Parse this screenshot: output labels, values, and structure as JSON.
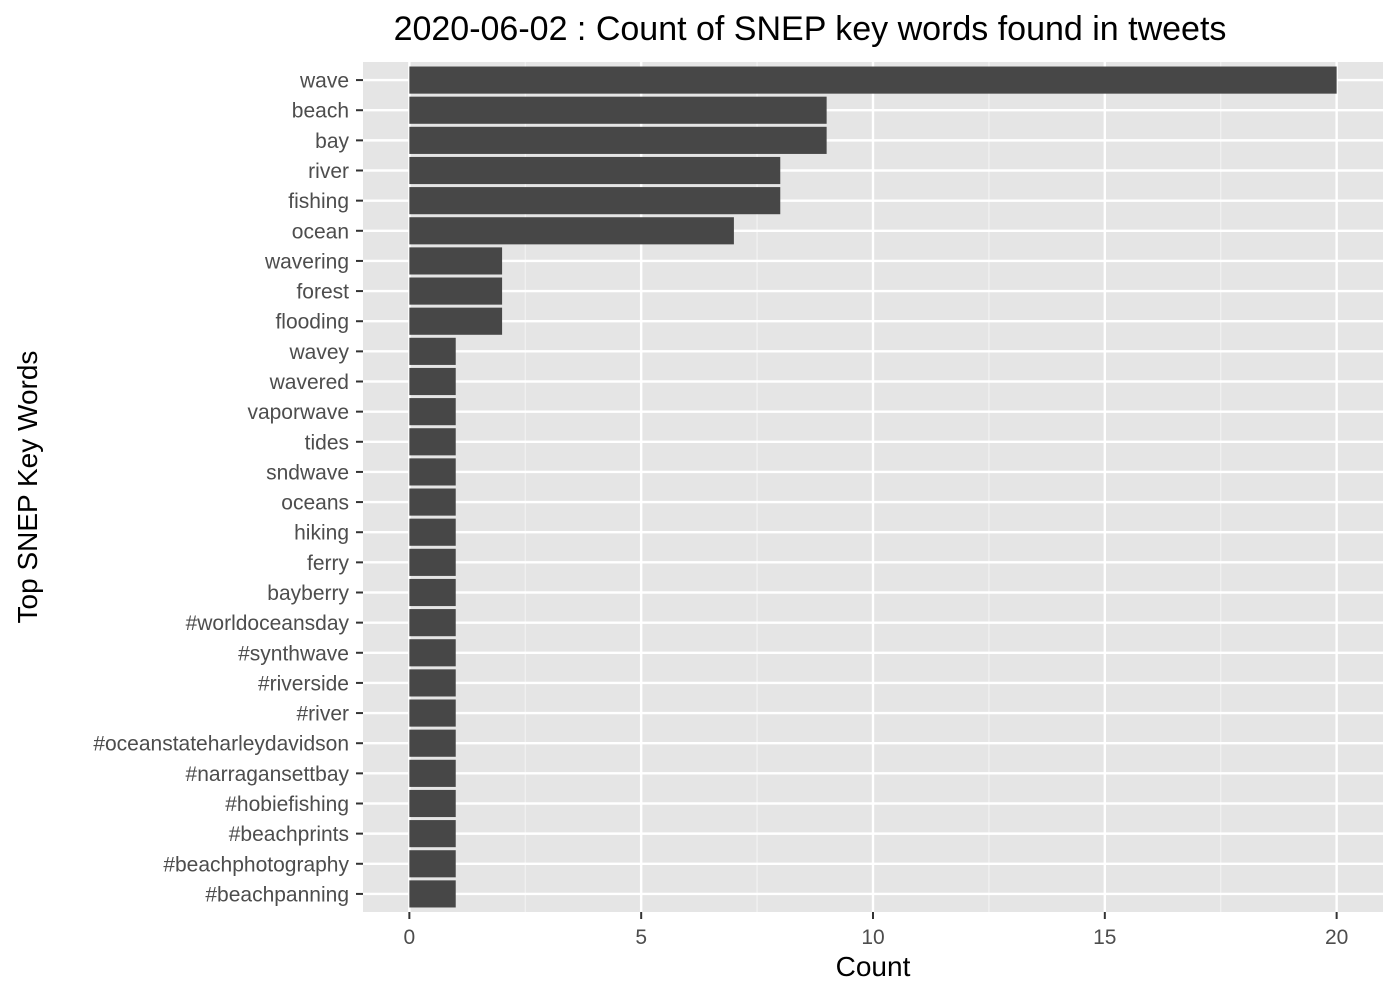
{
  "chart_data": {
    "type": "bar",
    "orientation": "horizontal",
    "title": "2020-06-02 : Count of SNEP key words found in tweets",
    "xlabel": "Count",
    "ylabel": "Top SNEP Key Words",
    "categories": [
      "wave",
      "beach",
      "bay",
      "river",
      "fishing",
      "ocean",
      "wavering",
      "forest",
      "flooding",
      "wavey",
      "wavered",
      "vaporwave",
      "tides",
      "sndwave",
      "oceans",
      "hiking",
      "ferry",
      "bayberry",
      "#worldoceansday",
      "#synthwave",
      "#riverside",
      "#river",
      "#oceanstateharleydavidson",
      "#narragansettbay",
      "#hobiefishing",
      "#beachprints",
      "#beachphotography",
      "#beachpanning"
    ],
    "values": [
      20,
      9,
      9,
      8,
      8,
      7,
      2,
      2,
      2,
      1,
      1,
      1,
      1,
      1,
      1,
      1,
      1,
      1,
      1,
      1,
      1,
      1,
      1,
      1,
      1,
      1,
      1,
      1
    ],
    "xlim": [
      -1,
      21
    ],
    "xticks": [
      0,
      5,
      10,
      15,
      20
    ],
    "grid": true,
    "legend": "none",
    "colors": {
      "bar": "#474747",
      "panel": "#e5e5e5",
      "grid_major": "#ffffff",
      "grid_minor": "#f2f2f2",
      "tick_label": "#4d4d4d",
      "tick_mark": "#333333"
    }
  }
}
